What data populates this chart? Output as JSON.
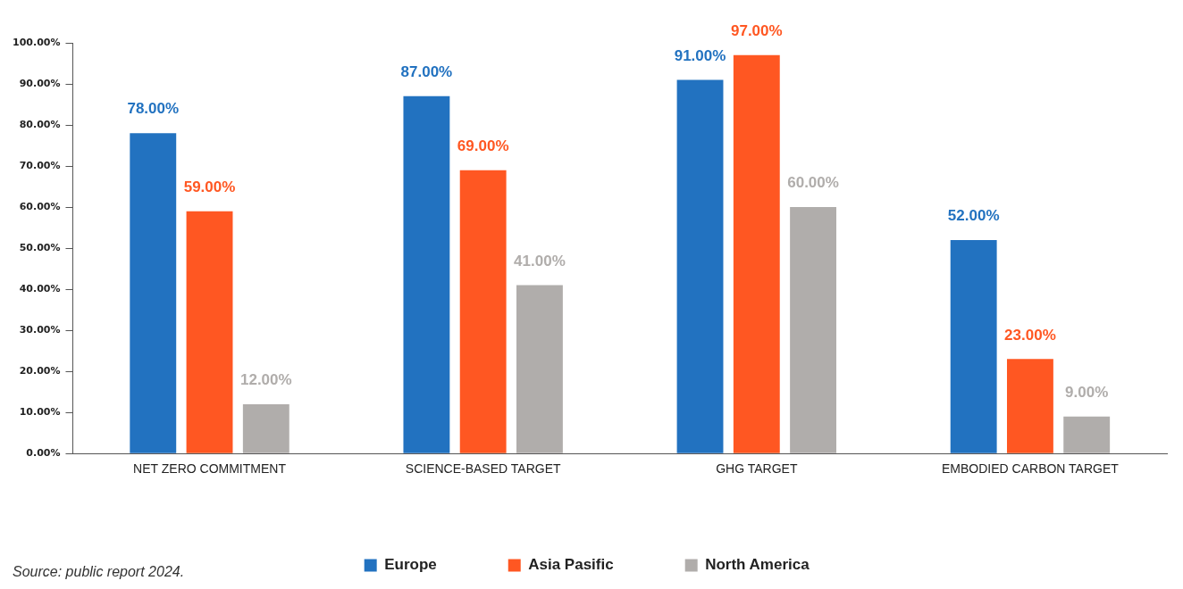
{
  "chart_data": {
    "type": "bar",
    "categories": [
      "NET ZERO COMMITMENT",
      "SCIENCE-BASED TARGET",
      "GHG TARGET",
      "EMBODIED CARBON TARGET"
    ],
    "series": [
      {
        "name": "Europe",
        "color": "#2272c0",
        "values": [
          78,
          87,
          91,
          52
        ],
        "value_labels": [
          "78.00%",
          "87.00%",
          "91.00%",
          "52.00%"
        ]
      },
      {
        "name": "Asia Pasific",
        "color": "#ff5722",
        "values": [
          59,
          69,
          97,
          23
        ],
        "value_labels": [
          "59.00%",
          "69.00%",
          "97.00%",
          "23.00%"
        ]
      },
      {
        "name": "North America",
        "color": "#b0adab",
        "values": [
          12,
          41,
          60,
          9
        ],
        "value_labels": [
          "12.00%",
          "41.00%",
          "60.00%",
          "9.00%"
        ]
      }
    ],
    "ylim": [
      0,
      100
    ],
    "yticks": [
      {
        "value": 0,
        "label": "0.00%"
      },
      {
        "value": 10,
        "label": "10.00%"
      },
      {
        "value": 20,
        "label": "20.00%"
      },
      {
        "value": 30,
        "label": "30.00%"
      },
      {
        "value": 40,
        "label": "40.00%"
      },
      {
        "value": 50,
        "label": "50.00%"
      },
      {
        "value": 60,
        "label": "60.00%"
      },
      {
        "value": 70,
        "label": "70.00%"
      },
      {
        "value": 80,
        "label": "80.00%"
      },
      {
        "value": 90,
        "label": "90.00%"
      },
      {
        "value": 100,
        "label": "100.00%"
      }
    ],
    "grid": false,
    "legend": "bottom",
    "annotations": [
      "Source: public report 2024."
    ]
  }
}
